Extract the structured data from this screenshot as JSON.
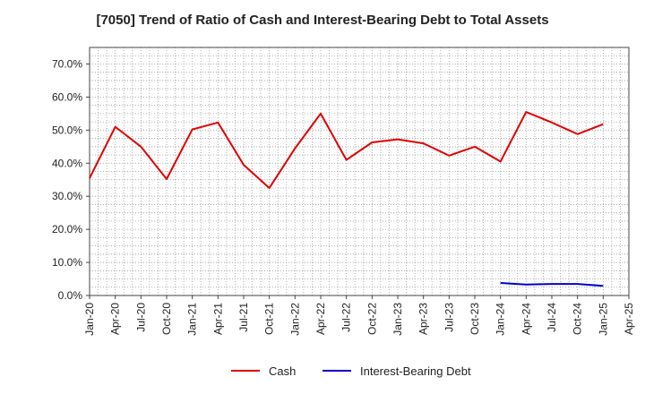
{
  "chart_data": {
    "type": "line",
    "title": "[7050]  Trend of Ratio of Cash and Interest-Bearing Debt to Total Assets",
    "xlabel": "",
    "ylabel": "",
    "x": [
      "Jan-20",
      "Apr-20",
      "Jul-20",
      "Oct-20",
      "Jan-21",
      "Apr-21",
      "Jul-21",
      "Oct-21",
      "Jan-22",
      "Apr-22",
      "Jul-22",
      "Oct-22",
      "Jan-23",
      "Apr-23",
      "Jul-23",
      "Oct-23",
      "Jan-24",
      "Apr-24",
      "Jul-24",
      "Oct-24",
      "Jan-25",
      "Apr-25"
    ],
    "x_tick_labels": [
      "Jan-20",
      "Apr-20",
      "Jul-20",
      "Oct-20",
      "Jan-21",
      "Apr-21",
      "Jul-21",
      "Oct-21",
      "Jan-22",
      "Apr-22",
      "Jul-22",
      "Oct-22",
      "Jan-23",
      "Apr-23",
      "Jul-23",
      "Oct-23",
      "Jan-24",
      "Apr-24",
      "Jul-24",
      "Oct-24",
      "Jan-25",
      "Apr-25"
    ],
    "y_ticks": [
      0,
      10,
      20,
      30,
      40,
      50,
      60,
      70
    ],
    "y_tick_labels": [
      "0.0%",
      "10.0%",
      "20.0%",
      "30.0%",
      "40.0%",
      "50.0%",
      "60.0%",
      "70.0%"
    ],
    "ylim": [
      0,
      75
    ],
    "grid": true,
    "legend_position": "bottom",
    "series": [
      {
        "name": "Cash",
        "color": "#e00000",
        "values": [
          35.5,
          51.0,
          45.0,
          35.2,
          50.2,
          52.3,
          39.5,
          32.5,
          44.5,
          55.0,
          41.0,
          46.3,
          47.2,
          46.0,
          42.3,
          45.0,
          40.5,
          55.5,
          52.3,
          48.8,
          51.8,
          null
        ]
      },
      {
        "name": "Interest-Bearing Debt",
        "color": "#0000cc",
        "values": [
          null,
          null,
          null,
          null,
          null,
          null,
          null,
          null,
          null,
          null,
          null,
          null,
          null,
          null,
          null,
          null,
          3.8,
          3.3,
          3.5,
          3.5,
          2.9,
          null
        ]
      }
    ]
  }
}
